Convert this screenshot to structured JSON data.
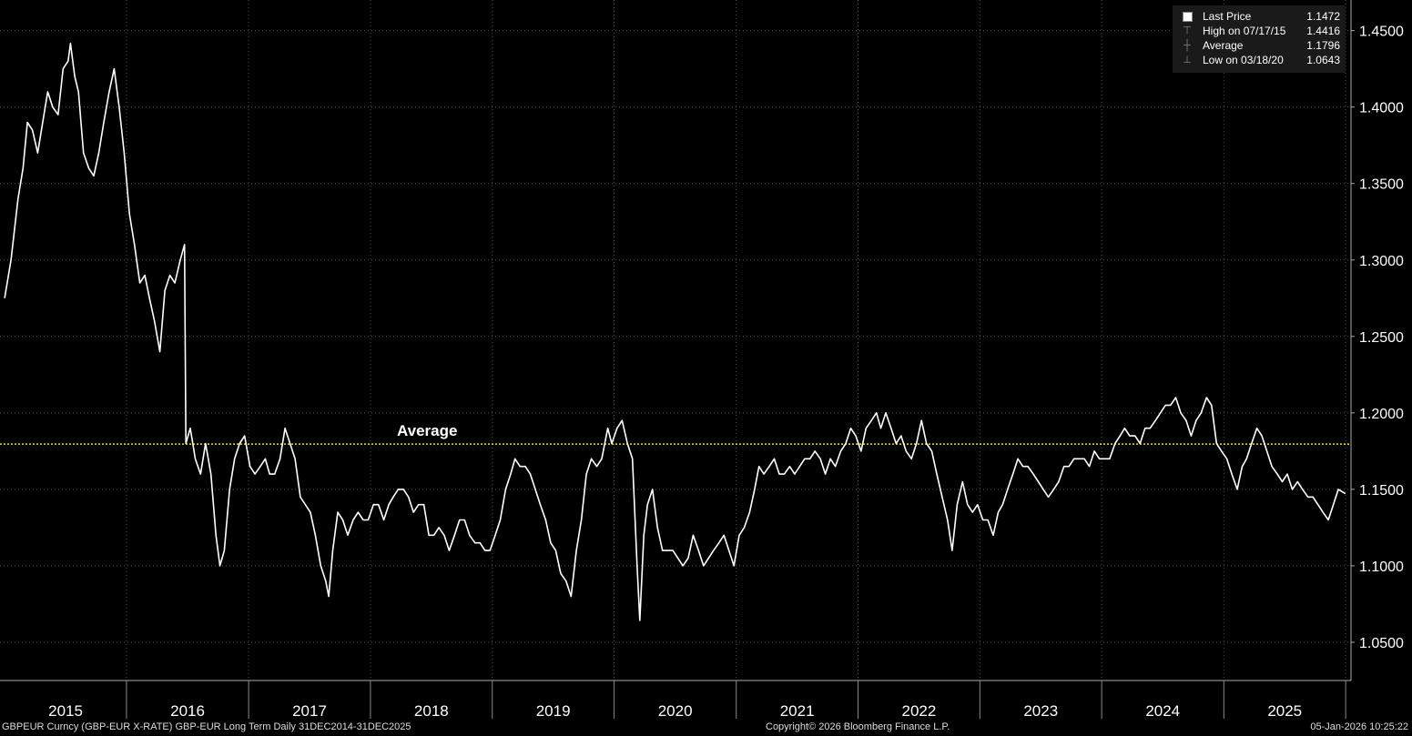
{
  "legend": {
    "last_price_label": "Last Price",
    "last_price_value": "1.1472",
    "high_label": "High on 07/17/15",
    "high_value": "1.4416",
    "average_label": "Average",
    "average_value": "1.1796",
    "low_label": "Low on 03/18/20",
    "low_value": "1.0643"
  },
  "average_annotation": "Average",
  "footer": {
    "left": "GBPEUR Curncy (GBP-EUR X-RATE) GBP-EUR Long Term Daily 31DEC2014-31DEC2025",
    "center": "Copyright© 2026 Bloomberg Finance L.P.",
    "right": "05-Jan-2026 10:25:22"
  },
  "colors": {
    "background": "#000000",
    "line": "#ffffff",
    "average_line": "#f2e600",
    "grid": "#555555"
  },
  "chart_data": {
    "type": "line",
    "title": "",
    "xlabel": "",
    "ylabel": "",
    "x_tick_labels": [
      "2015",
      "2016",
      "2017",
      "2018",
      "2019",
      "2020",
      "2021",
      "2022",
      "2023",
      "2024",
      "2025"
    ],
    "y_tick_labels": [
      "1.0500",
      "1.1000",
      "1.1500",
      "1.2000",
      "1.2500",
      "1.3000",
      "1.3500",
      "1.4000",
      "1.4500"
    ],
    "ylim": [
      1.025,
      1.47
    ],
    "xlim": [
      "2015-01-01",
      "2026-01-01"
    ],
    "grid": true,
    "average": 1.1796,
    "series": [
      {
        "x": [
          "2015-01-01",
          "2015-01-20",
          "2015-02-10",
          "2015-02-25",
          "2015-03-10",
          "2015-03-25",
          "2015-04-10",
          "2015-04-25",
          "2015-05-10",
          "2015-05-25",
          "2015-06-10",
          "2015-06-25",
          "2015-07-10",
          "2015-07-17",
          "2015-07-30",
          "2015-08-10",
          "2015-08-25",
          "2015-09-10",
          "2015-09-25",
          "2015-10-10",
          "2015-10-25",
          "2015-11-10",
          "2015-11-25",
          "2015-12-10",
          "2015-12-25",
          "2016-01-10",
          "2016-01-25",
          "2016-02-10",
          "2016-02-25",
          "2016-03-10",
          "2016-03-25",
          "2016-04-10",
          "2016-04-25",
          "2016-05-10",
          "2016-05-25",
          "2016-06-10",
          "2016-06-23",
          "2016-06-27",
          "2016-07-10",
          "2016-07-25",
          "2016-08-10",
          "2016-08-25",
          "2016-09-10",
          "2016-09-25",
          "2016-10-07",
          "2016-10-20",
          "2016-11-05",
          "2016-11-20",
          "2016-12-05",
          "2016-12-20",
          "2017-01-05",
          "2017-01-20",
          "2017-02-05",
          "2017-02-20",
          "2017-03-05",
          "2017-03-20",
          "2017-04-05",
          "2017-04-20",
          "2017-05-05",
          "2017-05-20",
          "2017-06-05",
          "2017-06-20",
          "2017-07-05",
          "2017-07-20",
          "2017-08-05",
          "2017-08-20",
          "2017-08-29",
          "2017-09-10",
          "2017-09-25",
          "2017-10-10",
          "2017-10-25",
          "2017-11-10",
          "2017-11-25",
          "2017-12-10",
          "2017-12-25",
          "2018-01-10",
          "2018-01-25",
          "2018-02-10",
          "2018-02-25",
          "2018-03-10",
          "2018-03-25",
          "2018-04-10",
          "2018-04-25",
          "2018-05-10",
          "2018-05-25",
          "2018-06-10",
          "2018-06-25",
          "2018-07-10",
          "2018-07-25",
          "2018-08-10",
          "2018-08-25",
          "2018-09-10",
          "2018-09-25",
          "2018-10-10",
          "2018-10-25",
          "2018-11-10",
          "2018-11-25",
          "2018-12-10",
          "2018-12-25",
          "2019-01-10",
          "2019-01-25",
          "2019-02-10",
          "2019-02-25",
          "2019-03-10",
          "2019-03-25",
          "2019-04-10",
          "2019-04-25",
          "2019-05-10",
          "2019-05-25",
          "2019-06-10",
          "2019-06-25",
          "2019-07-10",
          "2019-07-25",
          "2019-08-10",
          "2019-08-25",
          "2019-09-10",
          "2019-09-25",
          "2019-10-10",
          "2019-10-25",
          "2019-11-10",
          "2019-11-25",
          "2019-12-13",
          "2019-12-25",
          "2020-01-10",
          "2020-01-25",
          "2020-02-10",
          "2020-02-25",
          "2020-03-10",
          "2020-03-18",
          "2020-03-30",
          "2020-04-10",
          "2020-04-25",
          "2020-05-10",
          "2020-05-25",
          "2020-06-10",
          "2020-06-25",
          "2020-07-10",
          "2020-07-25",
          "2020-08-10",
          "2020-08-25",
          "2020-09-10",
          "2020-09-25",
          "2020-10-10",
          "2020-10-25",
          "2020-11-10",
          "2020-11-25",
          "2020-12-10",
          "2020-12-25",
          "2021-01-10",
          "2021-01-25",
          "2021-02-10",
          "2021-02-25",
          "2021-03-10",
          "2021-03-25",
          "2021-04-10",
          "2021-04-25",
          "2021-05-10",
          "2021-05-25",
          "2021-06-10",
          "2021-06-25",
          "2021-07-10",
          "2021-07-25",
          "2021-08-10",
          "2021-08-25",
          "2021-09-10",
          "2021-09-25",
          "2021-10-10",
          "2021-10-25",
          "2021-11-10",
          "2021-11-25",
          "2021-12-10",
          "2021-12-25",
          "2022-01-10",
          "2022-01-25",
          "2022-02-10",
          "2022-02-25",
          "2022-03-10",
          "2022-03-25",
          "2022-04-10",
          "2022-04-25",
          "2022-05-10",
          "2022-05-25",
          "2022-06-10",
          "2022-06-25",
          "2022-07-10",
          "2022-07-25",
          "2022-08-10",
          "2022-08-25",
          "2022-09-10",
          "2022-09-26",
          "2022-10-10",
          "2022-10-25",
          "2022-11-10",
          "2022-11-25",
          "2022-12-10",
          "2022-12-25",
          "2023-01-10",
          "2023-01-25",
          "2023-02-10",
          "2023-02-25",
          "2023-03-10",
          "2023-03-25",
          "2023-04-10",
          "2023-04-25",
          "2023-05-10",
          "2023-05-25",
          "2023-06-10",
          "2023-06-25",
          "2023-07-10",
          "2023-07-25",
          "2023-08-10",
          "2023-08-25",
          "2023-09-10",
          "2023-09-25",
          "2023-10-10",
          "2023-10-25",
          "2023-11-10",
          "2023-11-25",
          "2023-12-10",
          "2023-12-25",
          "2024-01-10",
          "2024-01-25",
          "2024-02-10",
          "2024-02-25",
          "2024-03-10",
          "2024-03-25",
          "2024-04-10",
          "2024-04-25",
          "2024-05-10",
          "2024-05-25",
          "2024-06-10",
          "2024-06-25",
          "2024-07-10",
          "2024-07-25",
          "2024-08-10",
          "2024-08-25",
          "2024-09-10",
          "2024-09-25",
          "2024-10-10",
          "2024-10-25",
          "2024-11-10",
          "2024-11-25",
          "2024-12-10",
          "2024-12-25",
          "2025-01-10",
          "2025-01-25",
          "2025-02-10",
          "2025-02-25",
          "2025-03-10",
          "2025-03-25",
          "2025-04-10",
          "2025-04-25",
          "2025-05-10",
          "2025-05-25",
          "2025-06-10",
          "2025-06-25",
          "2025-07-10",
          "2025-07-25",
          "2025-08-10",
          "2025-08-25",
          "2025-09-10",
          "2025-09-25",
          "2025-10-10",
          "2025-10-25",
          "2025-11-10",
          "2025-11-25",
          "2025-12-10",
          "2025-12-31"
        ],
        "values": [
          1.275,
          1.3,
          1.34,
          1.36,
          1.39,
          1.385,
          1.37,
          1.39,
          1.41,
          1.4,
          1.395,
          1.425,
          1.43,
          1.4416,
          1.42,
          1.41,
          1.37,
          1.36,
          1.355,
          1.37,
          1.39,
          1.41,
          1.425,
          1.4,
          1.37,
          1.33,
          1.31,
          1.285,
          1.29,
          1.275,
          1.26,
          1.24,
          1.28,
          1.29,
          1.285,
          1.3,
          1.31,
          1.18,
          1.19,
          1.17,
          1.16,
          1.18,
          1.16,
          1.12,
          1.1,
          1.11,
          1.15,
          1.17,
          1.18,
          1.185,
          1.165,
          1.16,
          1.165,
          1.17,
          1.16,
          1.16,
          1.17,
          1.19,
          1.18,
          1.17,
          1.145,
          1.14,
          1.135,
          1.12,
          1.1,
          1.09,
          1.08,
          1.11,
          1.135,
          1.13,
          1.12,
          1.13,
          1.135,
          1.13,
          1.13,
          1.14,
          1.14,
          1.13,
          1.14,
          1.145,
          1.15,
          1.15,
          1.145,
          1.135,
          1.14,
          1.14,
          1.12,
          1.12,
          1.125,
          1.12,
          1.11,
          1.12,
          1.13,
          1.13,
          1.12,
          1.115,
          1.115,
          1.11,
          1.11,
          1.12,
          1.13,
          1.15,
          1.16,
          1.17,
          1.165,
          1.165,
          1.16,
          1.15,
          1.14,
          1.13,
          1.115,
          1.11,
          1.095,
          1.09,
          1.08,
          1.11,
          1.13,
          1.16,
          1.17,
          1.165,
          1.17,
          1.19,
          1.18,
          1.19,
          1.195,
          1.18,
          1.17,
          1.1,
          1.0643,
          1.12,
          1.14,
          1.15,
          1.125,
          1.11,
          1.11,
          1.11,
          1.105,
          1.1,
          1.105,
          1.12,
          1.11,
          1.1,
          1.105,
          1.11,
          1.115,
          1.12,
          1.11,
          1.1,
          1.12,
          1.125,
          1.135,
          1.15,
          1.165,
          1.16,
          1.165,
          1.17,
          1.16,
          1.16,
          1.165,
          1.16,
          1.165,
          1.17,
          1.17,
          1.175,
          1.17,
          1.16,
          1.17,
          1.165,
          1.175,
          1.18,
          1.19,
          1.185,
          1.175,
          1.19,
          1.195,
          1.2,
          1.19,
          1.2,
          1.19,
          1.18,
          1.185,
          1.175,
          1.17,
          1.18,
          1.195,
          1.18,
          1.175,
          1.16,
          1.145,
          1.13,
          1.11,
          1.14,
          1.155,
          1.14,
          1.135,
          1.14,
          1.13,
          1.13,
          1.12,
          1.135,
          1.14,
          1.15,
          1.16,
          1.17,
          1.165,
          1.165,
          1.16,
          1.155,
          1.15,
          1.145,
          1.15,
          1.155,
          1.165,
          1.165,
          1.17,
          1.17,
          1.17,
          1.165,
          1.175,
          1.17,
          1.17,
          1.17,
          1.18,
          1.185,
          1.19,
          1.185,
          1.185,
          1.18,
          1.19,
          1.19,
          1.195,
          1.2,
          1.205,
          1.205,
          1.21,
          1.2,
          1.195,
          1.185,
          1.195,
          1.2,
          1.21,
          1.205,
          1.18,
          1.175,
          1.17,
          1.16,
          1.15,
          1.165,
          1.17,
          1.18,
          1.19,
          1.185,
          1.175,
          1.165,
          1.16,
          1.155,
          1.16,
          1.15,
          1.155,
          1.15,
          1.145,
          1.145,
          1.14,
          1.135,
          1.13,
          1.14,
          1.15,
          1.1472
        ]
      }
    ]
  }
}
